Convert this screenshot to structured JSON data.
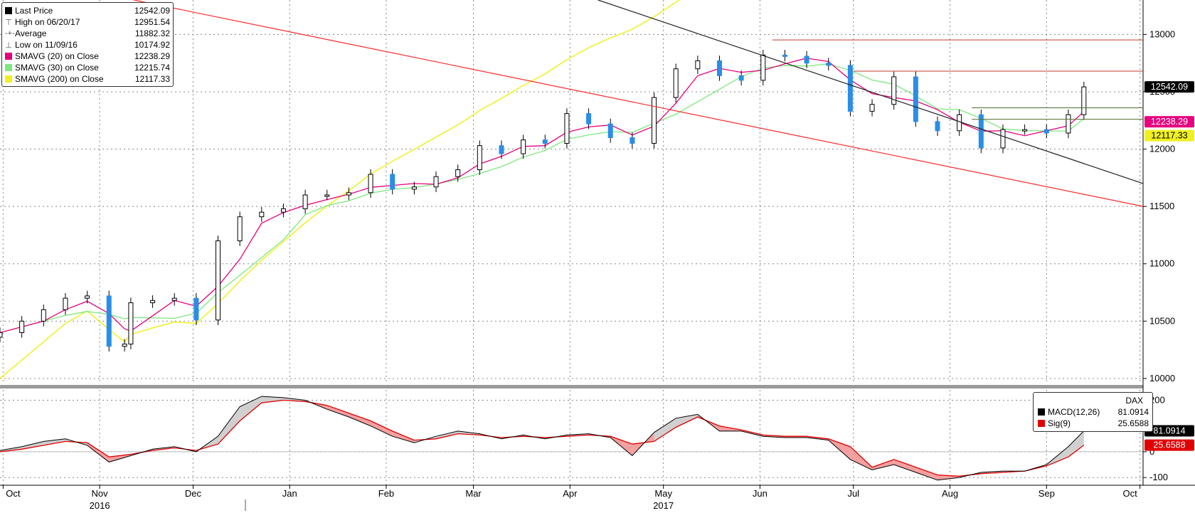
{
  "main_legend": {
    "items": [
      {
        "label": "Last Price",
        "value": "12542.09",
        "swatch": "#000000",
        "icon": "square-swatch-icon"
      },
      {
        "label": "High on 06/20/17",
        "value": "12951.54",
        "glyph": "⊤",
        "icon": "high-marker-icon"
      },
      {
        "label": "Average",
        "value": "11882.32",
        "glyph": "-+-",
        "icon": "average-marker-icon"
      },
      {
        "label": "Low on 11/09/16",
        "value": "10174.92",
        "glyph": "⊥",
        "icon": "low-marker-icon"
      },
      {
        "label": "SMAVG (20) on Close",
        "value": "12238.29",
        "swatch": "#e6007e",
        "icon": "square-swatch-icon"
      },
      {
        "label": "SMAVG (30) on Close",
        "value": "12215.74",
        "swatch": "#7ee87e",
        "icon": "square-swatch-icon"
      },
      {
        "label": "SMAVG (200) on Close",
        "value": "12117.33",
        "swatch": "#f0f020",
        "icon": "square-swatch-icon"
      }
    ]
  },
  "macd_legend": {
    "title": "DAX",
    "items": [
      {
        "label": "MACD(12,26)",
        "value": "81.0914",
        "swatch": "#000000"
      },
      {
        "label": "Sig(9)",
        "value": "25.6588",
        "swatch": "#e00000"
      }
    ]
  },
  "colors": {
    "up_candle": "#ffffff",
    "down_candle": "#2a8de8",
    "sma20": "#e6007e",
    "sma30": "#7ee87e",
    "sma200": "#f0f020",
    "trend_red": "#ff2a2a",
    "trend_black": "#222222",
    "level_line": "#c0392b",
    "level_green": "#556b2f",
    "macd": "#000000",
    "signal": "#e00000",
    "macd_fill_up": "#d0d0d0",
    "macd_fill_down": "#f2a0a0"
  },
  "chart_data": [
    {
      "type": "candlestick",
      "title": "",
      "ylim": [
        9950,
        13300
      ],
      "y_ticks": [
        10000,
        10500,
        11000,
        11500,
        12000,
        12500,
        13000
      ],
      "x_month_labels": [
        "Oct",
        "Nov",
        "Dec",
        "Jan",
        "Feb",
        "Mar",
        "Apr",
        "May",
        "Jun",
        "Jul",
        "Aug",
        "Sep",
        "Oct"
      ],
      "x_month_dates": [
        "2016-10-01",
        "2016-11-01",
        "2016-12-01",
        "2017-01-01",
        "2017-02-01",
        "2017-03-01",
        "2017-04-01",
        "2017-05-01",
        "2017-06-01",
        "2017-07-01",
        "2017-08-01",
        "2017-09-01",
        "2017-10-01"
      ],
      "x_year_labels": [
        {
          "label": "2016",
          "date": "2016-11-01"
        },
        {
          "label": "2017",
          "date": "2017-05-01"
        }
      ],
      "xlim": [
        "2016-09-30",
        "2017-10-02"
      ],
      "candles": [
        {
          "date": "2016-09-30",
          "c": 10400
        },
        {
          "date": "2016-10-07",
          "c": 10500
        },
        {
          "date": "2016-10-14",
          "c": 10600
        },
        {
          "date": "2016-10-21",
          "c": 10700
        },
        {
          "date": "2016-10-28",
          "c": 10720
        },
        {
          "date": "2016-11-04",
          "c": 10280
        },
        {
          "date": "2016-11-09",
          "c": 10300
        },
        {
          "date": "2016-11-11",
          "c": 10660
        },
        {
          "date": "2016-11-18",
          "c": 10680
        },
        {
          "date": "2016-11-25",
          "c": 10700
        },
        {
          "date": "2016-12-02",
          "c": 10510
        },
        {
          "date": "2016-12-09",
          "c": 11200
        },
        {
          "date": "2016-12-16",
          "c": 11410
        },
        {
          "date": "2016-12-23",
          "c": 11450
        },
        {
          "date": "2016-12-30",
          "c": 11480
        },
        {
          "date": "2017-01-06",
          "c": 11600
        },
        {
          "date": "2017-01-13",
          "c": 11600
        },
        {
          "date": "2017-01-20",
          "c": 11620
        },
        {
          "date": "2017-01-27",
          "c": 11780
        },
        {
          "date": "2017-02-03",
          "c": 11650
        },
        {
          "date": "2017-02-10",
          "c": 11670
        },
        {
          "date": "2017-02-17",
          "c": 11760
        },
        {
          "date": "2017-02-24",
          "c": 11820
        },
        {
          "date": "2017-03-03",
          "c": 12030
        },
        {
          "date": "2017-03-10",
          "c": 11960
        },
        {
          "date": "2017-03-17",
          "c": 12080
        },
        {
          "date": "2017-03-24",
          "c": 12050
        },
        {
          "date": "2017-03-31",
          "c": 12310
        },
        {
          "date": "2017-04-07",
          "c": 12220
        },
        {
          "date": "2017-04-14",
          "c": 12100
        },
        {
          "date": "2017-04-21",
          "c": 12050
        },
        {
          "date": "2017-04-28",
          "c": 12450
        },
        {
          "date": "2017-05-05",
          "c": 12700
        },
        {
          "date": "2017-05-12",
          "c": 12770
        },
        {
          "date": "2017-05-19",
          "c": 12640
        },
        {
          "date": "2017-05-26",
          "c": 12600
        },
        {
          "date": "2017-06-02",
          "c": 12820
        },
        {
          "date": "2017-06-09",
          "c": 12810
        },
        {
          "date": "2017-06-16",
          "c": 12750
        },
        {
          "date": "2017-06-23",
          "c": 12730
        },
        {
          "date": "2017-06-30",
          "c": 12330
        },
        {
          "date": "2017-07-07",
          "c": 12390
        },
        {
          "date": "2017-07-14",
          "c": 12630
        },
        {
          "date": "2017-07-21",
          "c": 12240
        },
        {
          "date": "2017-07-28",
          "c": 12160
        },
        {
          "date": "2017-08-04",
          "c": 12300
        },
        {
          "date": "2017-08-11",
          "c": 12010
        },
        {
          "date": "2017-08-18",
          "c": 12170
        },
        {
          "date": "2017-08-25",
          "c": 12170
        },
        {
          "date": "2017-09-01",
          "c": 12140
        },
        {
          "date": "2017-09-08",
          "c": 12300
        },
        {
          "date": "2017-09-13",
          "c": 12542.09
        }
      ],
      "annotations": [
        {
          "label": "12542.09",
          "value": 12542.09,
          "bg": "#000000",
          "fg": "#ffffff"
        },
        {
          "label": "12238.29",
          "value": 12238.29,
          "bg": "#e6007e",
          "fg": "#ffffff"
        },
        {
          "label": "12117.33",
          "value": 12117.33,
          "bg": "#f0f020",
          "fg": "#000000"
        }
      ],
      "levels": [
        {
          "value": 12951.54,
          "from": "2017-06-05",
          "color": "#c0392b"
        },
        {
          "value": 12680,
          "from": "2017-07-01",
          "color": "#c0392b"
        },
        {
          "value": 12360,
          "from": "2017-08-08",
          "color": "#556b2f"
        },
        {
          "value": 12260,
          "from": "2017-08-08",
          "color": "#556b2f"
        }
      ],
      "trendlines": [
        {
          "from": [
            "2016-11-12",
            13300
          ],
          "to": [
            "2017-10-02",
            11500
          ],
          "color": "#ff2a2a"
        },
        {
          "from": [
            "2017-04-10",
            13300
          ],
          "to": [
            "2017-10-02",
            11700
          ],
          "color": "#222222"
        }
      ]
    },
    {
      "type": "line",
      "title": "DAX",
      "ylim": [
        -130,
        240
      ],
      "y_ticks": [
        200,
        0,
        -100
      ],
      "x": [
        "2016-09-30",
        "2016-10-07",
        "2016-10-14",
        "2016-10-21",
        "2016-10-28",
        "2016-11-04",
        "2016-11-11",
        "2016-11-18",
        "2016-11-25",
        "2016-12-02",
        "2016-12-09",
        "2016-12-16",
        "2016-12-23",
        "2016-12-30",
        "2017-01-06",
        "2017-01-13",
        "2017-01-20",
        "2017-01-27",
        "2017-02-03",
        "2017-02-10",
        "2017-02-17",
        "2017-02-24",
        "2017-03-03",
        "2017-03-10",
        "2017-03-17",
        "2017-03-24",
        "2017-03-31",
        "2017-04-07",
        "2017-04-14",
        "2017-04-21",
        "2017-04-28",
        "2017-05-05",
        "2017-05-12",
        "2017-05-19",
        "2017-05-26",
        "2017-06-02",
        "2017-06-09",
        "2017-06-16",
        "2017-06-23",
        "2017-06-30",
        "2017-07-07",
        "2017-07-14",
        "2017-07-21",
        "2017-07-28",
        "2017-08-04",
        "2017-08-11",
        "2017-08-18",
        "2017-08-25",
        "2017-09-01",
        "2017-09-08",
        "2017-09-13"
      ],
      "series": [
        {
          "name": "MACD(12,26)",
          "values": [
            5,
            20,
            40,
            50,
            25,
            -40,
            -15,
            10,
            20,
            0,
            60,
            175,
            215,
            210,
            200,
            165,
            135,
            100,
            60,
            35,
            60,
            80,
            70,
            50,
            65,
            50,
            65,
            70,
            55,
            -15,
            75,
            130,
            145,
            80,
            80,
            60,
            55,
            55,
            45,
            -30,
            -70,
            -50,
            -80,
            -110,
            -100,
            -80,
            -75,
            -75,
            -50,
            20,
            81.0914
          ]
        },
        {
          "name": "Sig(9)",
          "values": [
            0,
            10,
            25,
            40,
            35,
            -20,
            -10,
            5,
            15,
            5,
            30,
            120,
            190,
            200,
            195,
            180,
            150,
            120,
            80,
            45,
            50,
            70,
            65,
            55,
            60,
            55,
            60,
            65,
            60,
            30,
            40,
            95,
            135,
            100,
            85,
            65,
            60,
            60,
            50,
            20,
            -60,
            -30,
            -60,
            -90,
            -95,
            -85,
            -80,
            -75,
            -55,
            -20,
            25.6588
          ]
        }
      ],
      "annotations": [
        {
          "label": "81.0914",
          "value": 81.0914,
          "bg": "#000000",
          "fg": "#ffffff"
        },
        {
          "label": "25.6588",
          "value": 25.6588,
          "bg": "#e00000",
          "fg": "#ffffff"
        }
      ]
    }
  ]
}
